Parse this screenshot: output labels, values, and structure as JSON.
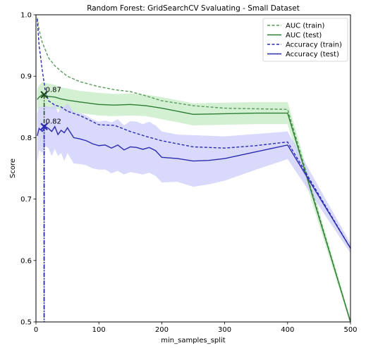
{
  "chart_data": {
    "type": "line",
    "title": "Random Forest: GridSearchCV Svaluating - Small Dataset",
    "xlabel": "min_samples_split",
    "ylabel": "Score",
    "xlim": [
      0,
      500
    ],
    "ylim": [
      0.5,
      1.0
    ],
    "xticks": [
      "0",
      "100",
      "200",
      "300",
      "400",
      "500"
    ],
    "yticks": [
      "0.5",
      "0.6",
      "0.7",
      "0.8",
      "0.9",
      "1.0"
    ],
    "grid": false,
    "legend_position": "top-right",
    "colors": {
      "auc": "#2e7d32",
      "auc_train": "#5a9a5a",
      "acc": "#2b2bb0",
      "auc_band": "#c8ecc8",
      "acc_band": "#d0d0fa"
    },
    "series": [
      {
        "name": "AUC (train)",
        "style": "dashed",
        "color": "#5a9a5a",
        "x": [
          2,
          5,
          10,
          20,
          30,
          40,
          50,
          70,
          100,
          125,
          150,
          175,
          200,
          250,
          300,
          350,
          400,
          500
        ],
        "y": [
          0.995,
          0.975,
          0.955,
          0.93,
          0.917,
          0.908,
          0.9,
          0.891,
          0.883,
          0.878,
          0.875,
          0.868,
          0.86,
          0.852,
          0.848,
          0.847,
          0.846,
          0.5
        ]
      },
      {
        "name": "AUC (test)",
        "style": "solid",
        "color": "#2e7d32",
        "x": [
          2,
          5,
          10,
          20,
          30,
          40,
          50,
          70,
          100,
          125,
          150,
          175,
          200,
          250,
          300,
          350,
          400,
          500
        ],
        "y": [
          0.862,
          0.866,
          0.87,
          0.867,
          0.866,
          0.863,
          0.861,
          0.858,
          0.854,
          0.853,
          0.854,
          0.852,
          0.848,
          0.838,
          0.839,
          0.84,
          0.84,
          0.5
        ],
        "lower": [
          0.845,
          0.848,
          0.85,
          0.847,
          0.847,
          0.845,
          0.843,
          0.84,
          0.836,
          0.835,
          0.836,
          0.835,
          0.83,
          0.82,
          0.821,
          0.822,
          0.822,
          0.495
        ],
        "upper": [
          0.88,
          0.885,
          0.89,
          0.888,
          0.886,
          0.882,
          0.88,
          0.876,
          0.873,
          0.871,
          0.872,
          0.87,
          0.866,
          0.856,
          0.857,
          0.858,
          0.858,
          0.505
        ]
      },
      {
        "name": "Accuracy (train)",
        "style": "dashed",
        "color": "#2b2bb0",
        "x": [
          2,
          5,
          10,
          15,
          20,
          30,
          40,
          50,
          70,
          100,
          125,
          150,
          175,
          200,
          250,
          300,
          350,
          400,
          500
        ],
        "y": [
          0.993,
          0.95,
          0.91,
          0.875,
          0.86,
          0.853,
          0.85,
          0.843,
          0.836,
          0.821,
          0.82,
          0.81,
          0.802,
          0.795,
          0.785,
          0.783,
          0.787,
          0.793,
          0.62
        ]
      },
      {
        "name": "Accuracy (test)",
        "style": "solid",
        "color": "#2b2bb0",
        "x": [
          2,
          5,
          10,
          15,
          20,
          25,
          30,
          35,
          40,
          45,
          50,
          60,
          70,
          80,
          90,
          100,
          110,
          120,
          130,
          140,
          150,
          160,
          170,
          180,
          190,
          200,
          225,
          250,
          275,
          300,
          350,
          400,
          500
        ],
        "y": [
          0.803,
          0.815,
          0.81,
          0.818,
          0.815,
          0.81,
          0.818,
          0.805,
          0.812,
          0.808,
          0.816,
          0.8,
          0.798,
          0.795,
          0.79,
          0.787,
          0.788,
          0.783,
          0.788,
          0.78,
          0.785,
          0.784,
          0.781,
          0.784,
          0.779,
          0.768,
          0.766,
          0.762,
          0.763,
          0.766,
          0.777,
          0.788,
          0.62
        ],
        "lower": [
          0.76,
          0.78,
          0.775,
          0.786,
          0.783,
          0.77,
          0.782,
          0.77,
          0.775,
          0.762,
          0.775,
          0.758,
          0.757,
          0.755,
          0.75,
          0.748,
          0.748,
          0.742,
          0.746,
          0.74,
          0.744,
          0.742,
          0.74,
          0.743,
          0.738,
          0.727,
          0.728,
          0.72,
          0.724,
          0.73,
          0.748,
          0.765,
          0.612
        ],
        "upper": [
          0.84,
          0.85,
          0.85,
          0.852,
          0.85,
          0.85,
          0.855,
          0.84,
          0.85,
          0.85,
          0.856,
          0.842,
          0.84,
          0.836,
          0.83,
          0.826,
          0.828,
          0.825,
          0.83,
          0.82,
          0.827,
          0.826,
          0.822,
          0.826,
          0.82,
          0.81,
          0.805,
          0.804,
          0.803,
          0.802,
          0.806,
          0.81,
          0.628
        ]
      }
    ],
    "annotations": [
      {
        "text": "0.87",
        "x": 13,
        "y": 0.87,
        "series": "AUC (test)",
        "marker_color": "#1f4d1f"
      },
      {
        "text": "0.82",
        "x": 13,
        "y": 0.818,
        "series": "Accuracy (test)",
        "marker_color": "#2b2bb0"
      }
    ]
  }
}
